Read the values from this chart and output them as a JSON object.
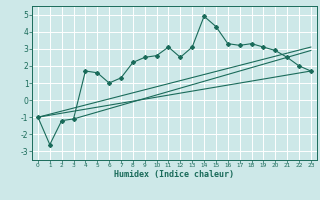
{
  "title": "",
  "xlabel": "Humidex (Indice chaleur)",
  "ylabel": "",
  "bg_color": "#cde8e8",
  "grid_color": "#ffffff",
  "line_color": "#1a6b5a",
  "xlim": [
    -0.5,
    23.5
  ],
  "ylim": [
    -3.5,
    5.5
  ],
  "yticks": [
    -3,
    -2,
    -1,
    0,
    1,
    2,
    3,
    4,
    5
  ],
  "xticks": [
    0,
    1,
    2,
    3,
    4,
    5,
    6,
    7,
    8,
    9,
    10,
    11,
    12,
    13,
    14,
    15,
    16,
    17,
    18,
    19,
    20,
    21,
    22,
    23
  ],
  "zigzag_x": [
    0,
    1,
    2,
    3,
    4,
    5,
    6,
    7,
    8,
    9,
    10,
    11,
    12,
    13,
    14,
    15,
    16,
    17,
    18,
    19,
    20,
    21,
    22,
    23
  ],
  "zigzag_y": [
    -1.0,
    -2.6,
    -1.2,
    -1.1,
    1.7,
    1.6,
    1.0,
    1.3,
    2.2,
    2.5,
    2.6,
    3.1,
    2.5,
    3.1,
    4.9,
    4.3,
    3.3,
    3.2,
    3.3,
    3.1,
    2.9,
    2.5,
    2.0,
    1.7
  ],
  "line1_x": [
    0,
    23
  ],
  "line1_y": [
    -1.0,
    1.7
  ],
  "line2_x": [
    0,
    23
  ],
  "line2_y": [
    -1.0,
    3.1
  ],
  "line3_x": [
    3,
    23
  ],
  "line3_y": [
    -1.1,
    2.9
  ]
}
